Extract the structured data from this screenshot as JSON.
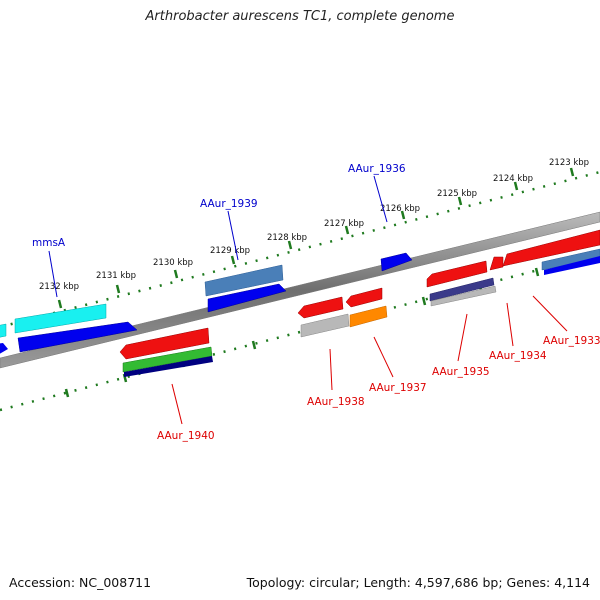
{
  "title": "Arthrobacter aurescens TC1, complete genome",
  "footer": {
    "accession": "Accession: NC_008711",
    "summary": "Topology: circular; Length: 4,597,686 bp; Genes: 4,114"
  },
  "colors": {
    "backbone": "#888888",
    "ruler": "#1f7a1f",
    "red": "#ee1111",
    "blue": "#0000ee",
    "steel": "#4a7fb8",
    "cyan": "#19f0f0",
    "green": "#33bb33",
    "navy": "#000080",
    "gray": "#b8b8b8",
    "orange": "#ff8800",
    "slate": "#3a3a8a",
    "label_red": "#dd0000",
    "label_blue": "#0000cc"
  },
  "kbp_ticks": [
    "2123 kbp",
    "2124 kbp",
    "2125 kbp",
    "2126 kbp",
    "2127 kbp",
    "2128 kbp",
    "2129 kbp",
    "2130 kbp",
    "2131 kbp",
    "2132 kbp"
  ],
  "gene_labels": {
    "top": [
      "mmsA",
      "AAur_1939",
      "AAur_1936"
    ],
    "bottom": [
      "AAur_1940",
      "AAur_1938",
      "AAur_1937",
      "AAur_1935",
      "AAur_1934",
      "AAur_1933"
    ]
  }
}
